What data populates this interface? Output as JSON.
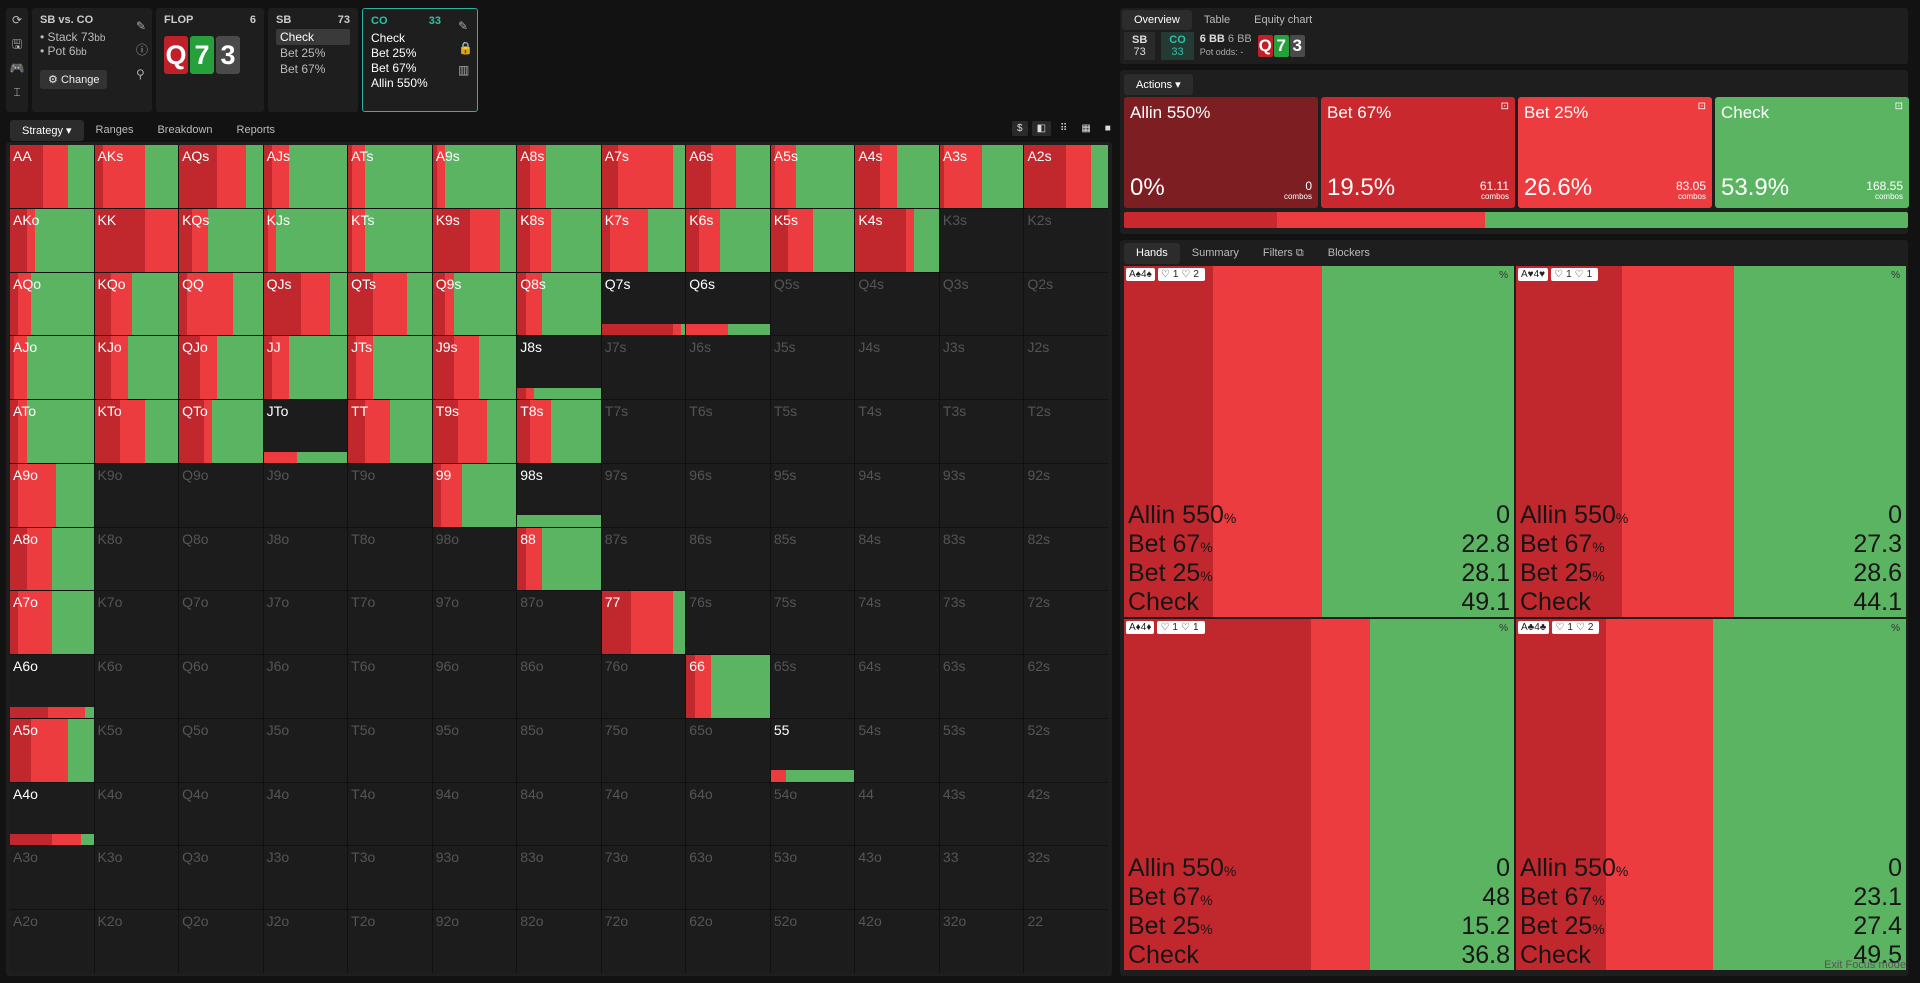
{
  "side_icons": [
    "refresh-icon",
    "save-icon",
    "gamepad-icon",
    "format-icon"
  ],
  "spot": {
    "title": "SB vs. CO",
    "stack_label": "Stack",
    "stack_value": "73",
    "stack_unit": "bb",
    "pot_label": "Pot",
    "pot_value": "6",
    "pot_unit": "bb",
    "change_label": "Change"
  },
  "flop": {
    "label": "FLOP",
    "pot": "6",
    "cards": [
      "Q",
      "7",
      "3"
    ]
  },
  "sb_node": {
    "label": "SB",
    "stack": "73",
    "actions": [
      "Check",
      "Bet 25%",
      "Bet 67%"
    ]
  },
  "co_node": {
    "label": "CO",
    "stack": "33",
    "actions": [
      "Check",
      "Bet 25%",
      "Bet 67%",
      "Allin 550%"
    ]
  },
  "left_tabs": [
    "Strategy",
    "Ranges",
    "Breakdown",
    "Reports"
  ],
  "grid": [
    [
      {
        "l": "AA",
        "s": [
          0,
          40,
          30,
          30
        ]
      },
      {
        "l": "AKs",
        "s": [
          0,
          10,
          50,
          40
        ]
      },
      {
        "l": "AQs",
        "s": [
          0,
          45,
          35,
          20
        ]
      },
      {
        "l": "AJs",
        "s": [
          0,
          10,
          20,
          70
        ]
      },
      {
        "l": "ATs",
        "s": [
          0,
          5,
          15,
          80
        ]
      },
      {
        "l": "A9s",
        "s": [
          0,
          5,
          10,
          85
        ]
      },
      {
        "l": "A8s",
        "s": [
          0,
          15,
          20,
          65
        ]
      },
      {
        "l": "A7s",
        "s": [
          0,
          20,
          65,
          15
        ]
      },
      {
        "l": "A6s",
        "s": [
          0,
          30,
          30,
          40
        ]
      },
      {
        "l": "A5s",
        "s": [
          0,
          5,
          25,
          70
        ]
      },
      {
        "l": "A4s",
        "s": [
          0,
          30,
          20,
          50
        ]
      },
      {
        "l": "A3s",
        "s": [
          0,
          5,
          45,
          50
        ]
      },
      {
        "l": "A2s",
        "s": [
          0,
          50,
          30,
          20
        ]
      }
    ],
    [
      {
        "l": "AKo",
        "s": [
          0,
          20,
          10,
          70
        ]
      },
      {
        "l": "KK",
        "s": [
          0,
          60,
          40,
          0
        ]
      },
      {
        "l": "KQs",
        "s": [
          0,
          15,
          20,
          65
        ]
      },
      {
        "l": "KJs",
        "s": [
          0,
          5,
          10,
          85
        ]
      },
      {
        "l": "KTs",
        "s": [
          0,
          5,
          15,
          80
        ]
      },
      {
        "l": "K9s",
        "s": [
          0,
          45,
          35,
          20
        ]
      },
      {
        "l": "K8s",
        "s": [
          0,
          15,
          25,
          60
        ]
      },
      {
        "l": "K7s",
        "s": [
          0,
          10,
          45,
          45
        ]
      },
      {
        "l": "K6s",
        "s": [
          0,
          15,
          25,
          60
        ]
      },
      {
        "l": "K5s",
        "s": [
          0,
          20,
          30,
          50
        ]
      },
      {
        "l": "K4s",
        "s": [
          0,
          60,
          10,
          30
        ]
      },
      {
        "l": "K3s",
        "s": null
      },
      {
        "l": "K2s",
        "s": null
      }
    ],
    [
      {
        "l": "AQo",
        "s": [
          0,
          10,
          15,
          75
        ]
      },
      {
        "l": "KQo",
        "s": [
          0,
          20,
          25,
          55
        ]
      },
      {
        "l": "QQ",
        "s": [
          0,
          10,
          55,
          35
        ]
      },
      {
        "l": "QJs",
        "s": [
          0,
          45,
          35,
          20
        ]
      },
      {
        "l": "QTs",
        "s": [
          0,
          30,
          40,
          30
        ]
      },
      {
        "l": "Q9s",
        "s": [
          0,
          15,
          10,
          75
        ]
      },
      {
        "l": "Q8s",
        "s": [
          0,
          10,
          20,
          70
        ]
      },
      {
        "l": "Q7s",
        "s": [
          0,
          85,
          10,
          5
        ],
        "short": true
      },
      {
        "l": "Q6s",
        "s": [
          0,
          0,
          50,
          50
        ],
        "short": true
      },
      {
        "l": "Q5s",
        "s": null
      },
      {
        "l": "Q4s",
        "s": null
      },
      {
        "l": "Q3s",
        "s": null
      },
      {
        "l": "Q2s",
        "s": null
      }
    ],
    [
      {
        "l": "AJo",
        "s": [
          0,
          5,
          15,
          80
        ]
      },
      {
        "l": "KJo",
        "s": [
          0,
          20,
          20,
          60
        ]
      },
      {
        "l": "QJo",
        "s": [
          0,
          25,
          20,
          55
        ]
      },
      {
        "l": "JJ",
        "s": [
          0,
          10,
          20,
          70
        ]
      },
      {
        "l": "JTs",
        "s": [
          0,
          10,
          20,
          70
        ]
      },
      {
        "l": "J9s",
        "s": [
          0,
          25,
          30,
          45
        ]
      },
      {
        "l": "J8s",
        "s": [
          0,
          10,
          10,
          80
        ],
        "short": true
      },
      {
        "l": "J7s",
        "s": null
      },
      {
        "l": "J6s",
        "s": null
      },
      {
        "l": "J5s",
        "s": null
      },
      {
        "l": "J4s",
        "s": null
      },
      {
        "l": "J3s",
        "s": null
      },
      {
        "l": "J2s",
        "s": null
      }
    ],
    [
      {
        "l": "ATo",
        "s": [
          0,
          10,
          10,
          80
        ]
      },
      {
        "l": "KTo",
        "s": [
          0,
          30,
          30,
          40
        ]
      },
      {
        "l": "QTo",
        "s": [
          0,
          30,
          10,
          60
        ]
      },
      {
        "l": "JTo",
        "s": [
          0,
          0,
          40,
          60
        ],
        "short": true
      },
      {
        "l": "TT",
        "s": [
          0,
          20,
          30,
          50
        ]
      },
      {
        "l": "T9s",
        "s": [
          0,
          30,
          35,
          35
        ]
      },
      {
        "l": "T8s",
        "s": [
          0,
          15,
          25,
          60
        ]
      },
      {
        "l": "T7s",
        "s": null
      },
      {
        "l": "T6s",
        "s": null
      },
      {
        "l": "T5s",
        "s": null
      },
      {
        "l": "T4s",
        "s": null
      },
      {
        "l": "T3s",
        "s": null
      },
      {
        "l": "T2s",
        "s": null
      }
    ],
    [
      {
        "l": "A9o",
        "s": [
          0,
          10,
          45,
          45
        ]
      },
      {
        "l": "K9o",
        "s": null
      },
      {
        "l": "Q9o",
        "s": null
      },
      {
        "l": "J9o",
        "s": null
      },
      {
        "l": "T9o",
        "s": null
      },
      {
        "l": "99",
        "s": [
          0,
          10,
          25,
          65
        ]
      },
      {
        "l": "98s",
        "s": [
          0,
          0,
          0,
          100
        ],
        "short": true
      },
      {
        "l": "97s",
        "s": null
      },
      {
        "l": "96s",
        "s": null
      },
      {
        "l": "95s",
        "s": null
      },
      {
        "l": "94s",
        "s": null
      },
      {
        "l": "93s",
        "s": null
      },
      {
        "l": "92s",
        "s": null
      }
    ],
    [
      {
        "l": "A8o",
        "s": [
          0,
          20,
          30,
          50
        ]
      },
      {
        "l": "K8o",
        "s": null
      },
      {
        "l": "Q8o",
        "s": null
      },
      {
        "l": "J8o",
        "s": null
      },
      {
        "l": "T8o",
        "s": null
      },
      {
        "l": "98o",
        "s": null
      },
      {
        "l": "88",
        "s": [
          0,
          10,
          20,
          70
        ]
      },
      {
        "l": "87s",
        "s": null
      },
      {
        "l": "86s",
        "s": null
      },
      {
        "l": "85s",
        "s": null
      },
      {
        "l": "84s",
        "s": null
      },
      {
        "l": "83s",
        "s": null
      },
      {
        "l": "82s",
        "s": null
      }
    ],
    [
      {
        "l": "A7o",
        "s": [
          0,
          10,
          40,
          50
        ]
      },
      {
        "l": "K7o",
        "s": null
      },
      {
        "l": "Q7o",
        "s": null
      },
      {
        "l": "J7o",
        "s": null
      },
      {
        "l": "T7o",
        "s": null
      },
      {
        "l": "97o",
        "s": null
      },
      {
        "l": "87o",
        "s": null
      },
      {
        "l": "77",
        "s": [
          0,
          35,
          50,
          15
        ]
      },
      {
        "l": "76s",
        "s": null
      },
      {
        "l": "75s",
        "s": null
      },
      {
        "l": "74s",
        "s": null
      },
      {
        "l": "73s",
        "s": null
      },
      {
        "l": "72s",
        "s": null
      }
    ],
    [
      {
        "l": "A6o",
        "s": [
          0,
          45,
          45,
          10
        ],
        "short": true
      },
      {
        "l": "K6o",
        "s": null
      },
      {
        "l": "Q6o",
        "s": null
      },
      {
        "l": "J6o",
        "s": null
      },
      {
        "l": "T6o",
        "s": null
      },
      {
        "l": "96o",
        "s": null
      },
      {
        "l": "86o",
        "s": null
      },
      {
        "l": "76o",
        "s": null
      },
      {
        "l": "66",
        "s": [
          0,
          10,
          20,
          70
        ]
      },
      {
        "l": "65s",
        "s": null
      },
      {
        "l": "64s",
        "s": null
      },
      {
        "l": "63s",
        "s": null
      },
      {
        "l": "62s",
        "s": null
      }
    ],
    [
      {
        "l": "A5o",
        "s": [
          0,
          25,
          45,
          30
        ]
      },
      {
        "l": "K5o",
        "s": null
      },
      {
        "l": "Q5o",
        "s": null
      },
      {
        "l": "J5o",
        "s": null
      },
      {
        "l": "T5o",
        "s": null
      },
      {
        "l": "95o",
        "s": null
      },
      {
        "l": "85o",
        "s": null
      },
      {
        "l": "75o",
        "s": null
      },
      {
        "l": "65o",
        "s": null
      },
      {
        "l": "55",
        "s": [
          0,
          0,
          18,
          82
        ],
        "short": true
      },
      {
        "l": "54s",
        "s": null
      },
      {
        "l": "53s",
        "s": null
      },
      {
        "l": "52s",
        "s": null
      }
    ],
    [
      {
        "l": "A4o",
        "s": [
          0,
          50,
          35,
          15
        ],
        "short": true
      },
      {
        "l": "K4o",
        "s": null
      },
      {
        "l": "Q4o",
        "s": null
      },
      {
        "l": "J4o",
        "s": null
      },
      {
        "l": "T4o",
        "s": null
      },
      {
        "l": "94o",
        "s": null
      },
      {
        "l": "84o",
        "s": null
      },
      {
        "l": "74o",
        "s": null
      },
      {
        "l": "64o",
        "s": null
      },
      {
        "l": "54o",
        "s": null
      },
      {
        "l": "44",
        "s": null
      },
      {
        "l": "43s",
        "s": null
      },
      {
        "l": "42s",
        "s": null
      }
    ],
    [
      {
        "l": "A3o",
        "s": null
      },
      {
        "l": "K3o",
        "s": null
      },
      {
        "l": "Q3o",
        "s": null
      },
      {
        "l": "J3o",
        "s": null
      },
      {
        "l": "T3o",
        "s": null
      },
      {
        "l": "93o",
        "s": null
      },
      {
        "l": "83o",
        "s": null
      },
      {
        "l": "73o",
        "s": null
      },
      {
        "l": "63o",
        "s": null
      },
      {
        "l": "53o",
        "s": null
      },
      {
        "l": "43o",
        "s": null
      },
      {
        "l": "33",
        "s": null
      },
      {
        "l": "32s",
        "s": null
      }
    ],
    [
      {
        "l": "A2o",
        "s": null
      },
      {
        "l": "K2o",
        "s": null
      },
      {
        "l": "Q2o",
        "s": null
      },
      {
        "l": "J2o",
        "s": null
      },
      {
        "l": "T2o",
        "s": null
      },
      {
        "l": "92o",
        "s": null
      },
      {
        "l": "82o",
        "s": null
      },
      {
        "l": "72o",
        "s": null
      },
      {
        "l": "62o",
        "s": null
      },
      {
        "l": "52o",
        "s": null
      },
      {
        "l": "42o",
        "s": null
      },
      {
        "l": "32o",
        "s": null
      },
      {
        "l": "22",
        "s": null
      }
    ]
  ],
  "right_tabs": [
    "Overview",
    "Table",
    "Equity chart"
  ],
  "summary": {
    "sb_label": "SB",
    "sb_stack": "73",
    "co_label": "CO",
    "co_stack": "33",
    "pot1": "6 BB",
    "pot2": "6 BB",
    "pot_odds_label": "Pot odds:",
    "pot_odds_value": "-"
  },
  "actions_label": "Actions",
  "actions": [
    {
      "name": "Allin 550%",
      "pct": "0%",
      "combos": "0",
      "combos_label": "combos",
      "color": "#7d1e22",
      "value": 0
    },
    {
      "name": "Bet 67%",
      "pct": "19.5%",
      "combos": "61.11",
      "combos_label": "combos",
      "color": "#c8282e",
      "value": 19.5
    },
    {
      "name": "Bet 25%",
      "pct": "26.6%",
      "combos": "83.05",
      "combos_label": "combos",
      "color": "#ec3c40",
      "value": 26.6
    },
    {
      "name": "Check",
      "pct": "53.9%",
      "combos": "168.55",
      "combos_label": "combos",
      "color": "#5bb462",
      "value": 53.9
    }
  ],
  "hands_tabs": [
    "Hands",
    "Summary",
    "Filters",
    "Blockers"
  ],
  "hands": [
    {
      "combo": "A♠4♠",
      "blk": "1",
      "blk2": "2",
      "rows": [
        [
          "Allin 550",
          "0"
        ],
        [
          "Bet 67",
          "22.8"
        ],
        [
          "Bet 25",
          "28.1"
        ],
        [
          "Check",
          "49.1"
        ]
      ],
      "v": [
        0,
        22.8,
        28.1,
        49.1
      ]
    },
    {
      "combo": "A♥4♥",
      "blk": "1",
      "blk2": "1",
      "rows": [
        [
          "Allin 550",
          "0"
        ],
        [
          "Bet 67",
          "27.3"
        ],
        [
          "Bet 25",
          "28.6"
        ],
        [
          "Check",
          "44.1"
        ]
      ],
      "v": [
        0,
        27.3,
        28.6,
        44.1
      ]
    },
    {
      "combo": "A♦4♦",
      "blk": "1",
      "blk2": "1",
      "rows": [
        [
          "Allin 550",
          "0"
        ],
        [
          "Bet 67",
          "48"
        ],
        [
          "Bet 25",
          "15.2"
        ],
        [
          "Check",
          "36.8"
        ]
      ],
      "v": [
        0,
        48,
        15.2,
        36.8
      ]
    },
    {
      "combo": "A♣4♣",
      "blk": "1",
      "blk2": "2",
      "rows": [
        [
          "Allin 550",
          "0"
        ],
        [
          "Bet 67",
          "23.1"
        ],
        [
          "Bet 25",
          "27.4"
        ],
        [
          "Check",
          "49.5"
        ]
      ],
      "v": [
        0,
        23.1,
        27.4,
        49.5
      ]
    }
  ],
  "percent_unit": "%",
  "footer": "Exit Focus mode"
}
